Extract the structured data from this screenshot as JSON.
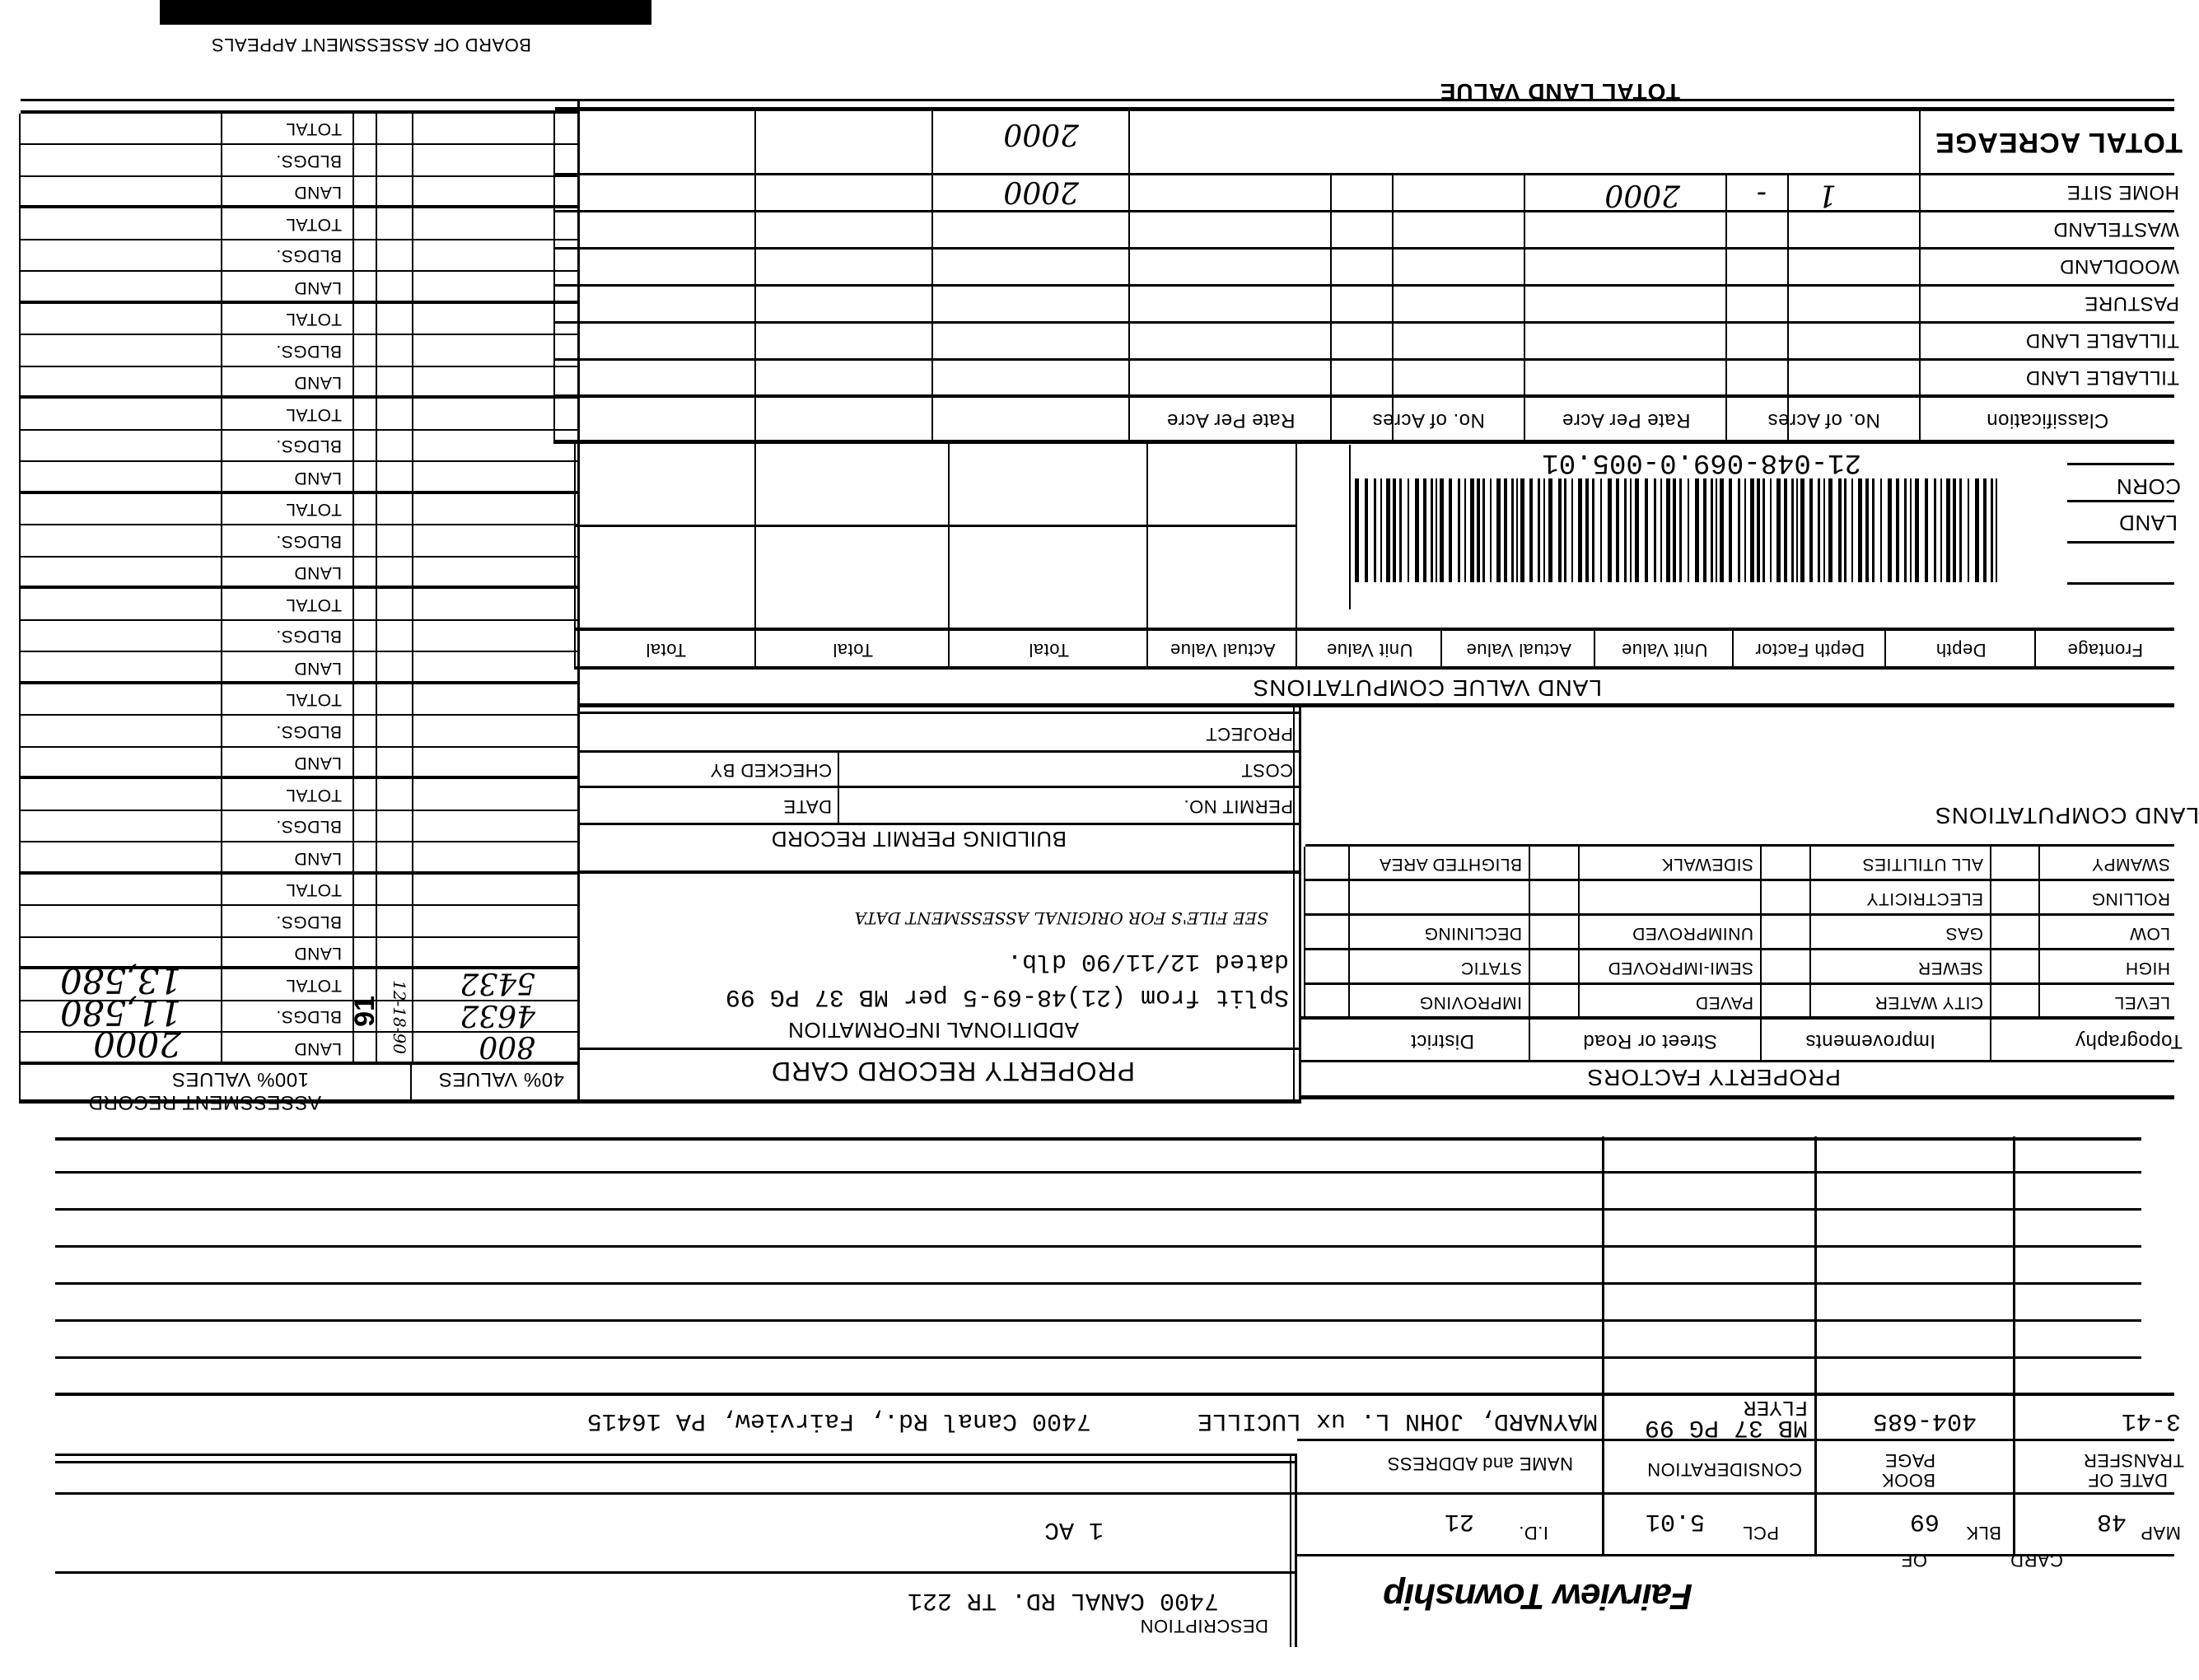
{
  "header": {
    "township": "Fairview Township",
    "card_label": "CARD",
    "of_label": "OF"
  },
  "parcel": {
    "map_label": "MAP",
    "map": "48",
    "blk_label": "BLK",
    "blk": "69",
    "pcl_label": "PCL",
    "pcl": "5.01",
    "id_label": "I.D.",
    "id": "21"
  },
  "description": {
    "label": "DESCRIPTION",
    "line1": "7400 CANAL RD.  TR 221",
    "line2": "1 AC"
  },
  "transfers": {
    "headers": {
      "date_line1": "DATE OF",
      "date_line2": "TRANSFER",
      "book": "BOOK",
      "page": "PAGE",
      "consideration": "CONSIDERATION",
      "name_address": "NAME and ADDRESS"
    },
    "rows": [
      {
        "date": "3-41",
        "book_page": "404-685",
        "consideration_line1": "MB 37 PG 99",
        "consideration_line2": "FLYER",
        "name": "MAYNARD, JOHN L. ux LUCILLE",
        "address": "7400 Canal Rd., Fairview, PA 16415"
      }
    ]
  },
  "property_factors": {
    "title": "PROPERTY FACTORS",
    "columns": [
      "Topography",
      "Improvements",
      "Street or Road",
      "District"
    ],
    "topography": [
      "LEVEL",
      "HIGH",
      "LOW",
      "ROLLING",
      "SWAMPY"
    ],
    "improvements": [
      "CITY WATER",
      "SEWER",
      "GAS",
      "ELECTRICITY",
      "ALL UTILITIES"
    ],
    "street": [
      "PAVED",
      "SEMI-IMPROVED",
      "UNIMPROVED",
      "",
      "SIDEWALK"
    ],
    "district": [
      "IMPROVING",
      "STATIC",
      "DECLINING",
      "",
      "BLIGHTED AREA"
    ]
  },
  "land_computations": {
    "title": "LAND COMPUTATIONS",
    "side_labels": [
      "LAND",
      "CORN"
    ]
  },
  "property_record_card": {
    "title": "PROPERTY RECORD CARD",
    "additional_title": "ADDITIONAL INFORMATION",
    "line1": "Split from (21)48-69-5 per MB 37 PG 99",
    "line2": "dated 12/11/90 dlb.",
    "handwritten_note": "SEE FILE'S FOR ORIGINAL ASSESSMENT DATA"
  },
  "building_permit": {
    "title": "BUILDING PERMIT RECORD",
    "permit_no": "PERMIT NO.",
    "date": "DATE",
    "cost": "COST",
    "checked_by": "CHECKED BY",
    "project": "PROJECT"
  },
  "assessment": {
    "title": "ASSESSMENT RECORD",
    "subtitle": "100% VALUES",
    "values40_label": "40% VALUES",
    "row_labels": [
      "LAND",
      "BLDGS.",
      "TOTAL"
    ],
    "year": "91",
    "date": "12-18-90",
    "land_100": "2000",
    "bldgs_100": "11,580",
    "total_100": "13,580",
    "land_40": "800",
    "bldgs_40": "4632",
    "total_40": "5432"
  },
  "land_value_computations": {
    "title": "LAND VALUE COMPUTATIONS",
    "columns": [
      "Frontage",
      "Depth",
      "Depth Factor",
      "Unit Value",
      "Actual Value",
      "Unit Value",
      "Actual Value",
      "Total",
      "Total",
      "Total"
    ]
  },
  "barcode": {
    "number": "21-048-069.0-005.01"
  },
  "land_classification": {
    "headers": [
      "Classification",
      "No. of Acres",
      "Rate Per Acre",
      "No. of Acres",
      "Rate Per Acre"
    ],
    "rows": [
      "TILLABLE LAND",
      "TILLABLE LAND",
      "PASTURE",
      "WOODLAND",
      "WASTELAND",
      "HOME SITE"
    ],
    "home_site": {
      "acres": "1",
      "rate": "-",
      "value": "2000",
      "total": "2000"
    },
    "total_acreage_label": "TOTAL ACREAGE",
    "total_land_value_label": "TOTAL LAND VALUE",
    "total_land_value": "2000"
  },
  "footer": {
    "board": "BOARD OF ASSESSMENT APPEALS"
  }
}
